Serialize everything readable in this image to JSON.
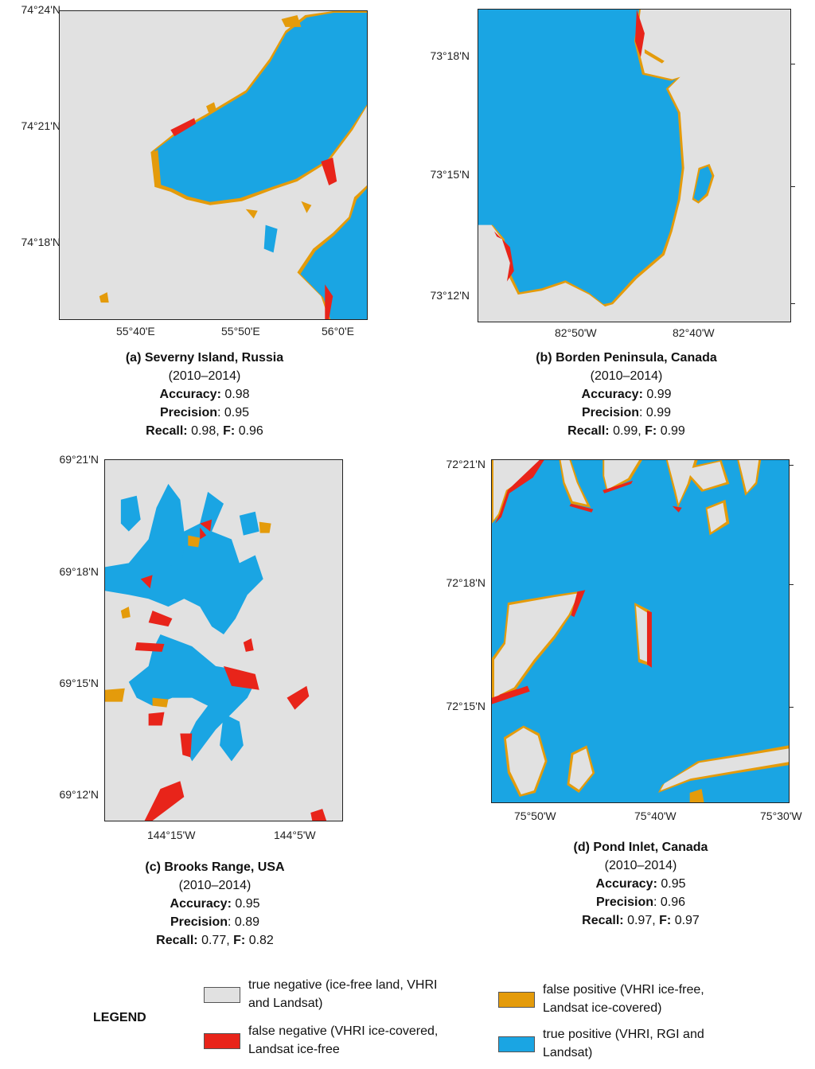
{
  "colors": {
    "true_negative": "#e1e1e1",
    "false_negative": "#e8241a",
    "false_positive": "#e49b0b",
    "true_positive": "#1aa5e3"
  },
  "panels": {
    "a": {
      "lat_ticks": [
        "74°24'N",
        "74°21'N",
        "74°18'N"
      ],
      "lon_ticks": [
        "55°40'E",
        "55°50'E",
        "56°0'E"
      ],
      "title": "(a) Severny Island, Russia",
      "period": "(2010–2014)",
      "accuracy_label": "Accuracy:",
      "accuracy": "0.98",
      "precision_label": "Precision",
      "precision": ": 0.95",
      "recall_label": "Recall:",
      "recall": "0.98,",
      "f_label": "F:",
      "f": "0.96"
    },
    "b": {
      "lat_ticks": [
        "73°18'N",
        "73°15'N",
        "73°12'N"
      ],
      "lon_ticks": [
        "82°50'W",
        "82°40'W"
      ],
      "title": "(b) Borden Peninsula, Canada",
      "period": "(2010–2014)",
      "accuracy_label": "Accuracy:",
      "accuracy": "0.99",
      "precision_label": "Precision",
      "precision": ": 0.99",
      "recall_label": "Recall:",
      "recall": "0.99,",
      "f_label": "F:",
      "f": "0.99"
    },
    "c": {
      "lat_ticks": [
        "69°21'N",
        "69°18'N",
        "69°15'N",
        "69°12'N"
      ],
      "lon_ticks": [
        "144°15'W",
        "144°5'W"
      ],
      "title": "(c) Brooks Range, USA",
      "period": "(2010–2014)",
      "accuracy_label": "Accuracy:",
      "accuracy": "0.95",
      "precision_label": "Precision",
      "precision": ": 0.89",
      "recall_label": "Recall:",
      "recall": "0.77,",
      "f_label": "F:",
      "f": "0.82"
    },
    "d": {
      "lat_ticks": [
        "72°21'N",
        "72°18'N",
        "72°15'N"
      ],
      "lon_ticks": [
        "75°50'W",
        "75°40'W",
        "75°30'W"
      ],
      "title": "(d) Pond Inlet, Canada",
      "period": "(2010–2014)",
      "accuracy_label": "Accuracy:",
      "accuracy": "0.95",
      "precision_label": "Precision",
      "precision": ": 0.96",
      "recall_label": "Recall:",
      "recall": "0.97,",
      "f_label": "F:",
      "f": "0.97"
    }
  },
  "legend": {
    "title": "LEGEND",
    "items": {
      "true_negative": "true negative (ice-free land, VHRI and Landsat)",
      "false_negative": "false negative (VHRI ice-covered, Landsat ice-free",
      "false_positive": "false positive (VHRI ice-free, Landsat ice-covered)",
      "true_positive": "true positive (VHRI, RGI and Landsat)"
    }
  }
}
